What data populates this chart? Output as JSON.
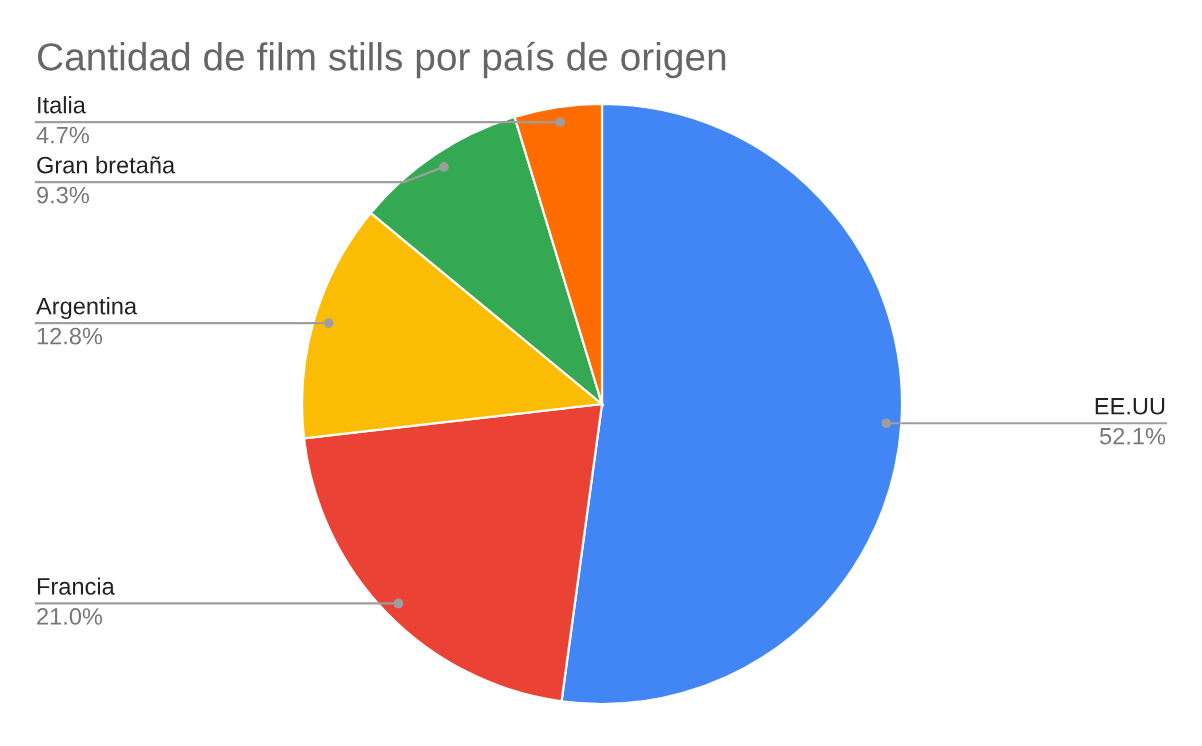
{
  "chart_data": {
    "type": "pie",
    "title": "Cantidad de film stills por país de origen",
    "categories": [
      "EE.UU",
      "Francia",
      "Argentina",
      "Gran bretaña",
      "Italia"
    ],
    "values": [
      52.1,
      21.0,
      12.8,
      9.3,
      4.7
    ],
    "colors": [
      "#4285f4",
      "#ea4335",
      "#fbbc04",
      "#34a853",
      "#ff6d01"
    ],
    "value_labels": [
      "52.1%",
      "21.0%",
      "12.8%",
      "9.3%",
      "4.7%"
    ],
    "legend": false
  }
}
